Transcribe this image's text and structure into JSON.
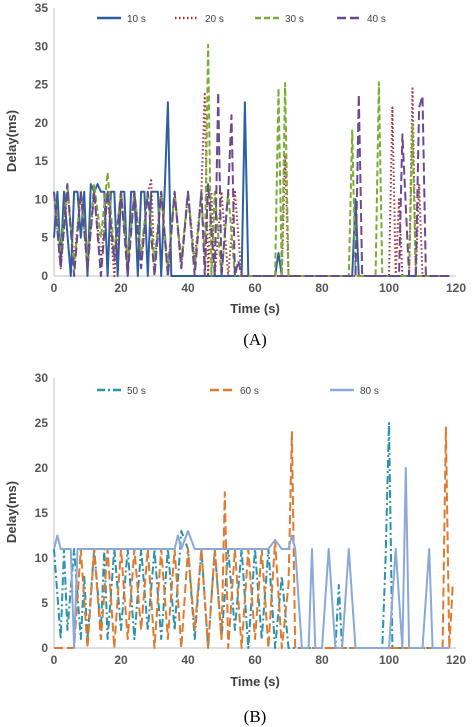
{
  "chart_data": [
    {
      "type": "line",
      "panel_label": "(A)",
      "xlabel": "Time (s)",
      "ylabel": "Delay(ms)",
      "xlim": [
        0,
        120
      ],
      "ylim": [
        0,
        35
      ],
      "xticks": [
        "0",
        "20",
        "40",
        "60",
        "80",
        "100",
        "120"
      ],
      "yticks": [
        "0",
        "5",
        "10",
        "15",
        "20",
        "25",
        "30",
        "35"
      ],
      "grid": false,
      "legend_position": "top",
      "series": [
        {
          "name": "10 s",
          "color": "#2e5fa3",
          "dash": "solid",
          "x": [
            0,
            1,
            2,
            3,
            5,
            6,
            7,
            8,
            9,
            10,
            11,
            12,
            13,
            14,
            15,
            16,
            17,
            18,
            19,
            20,
            21,
            22,
            23,
            24,
            25,
            26,
            27,
            28,
            29,
            30,
            31,
            32,
            33,
            34,
            35,
            36,
            37,
            38,
            39,
            40,
            42,
            44,
            45,
            46,
            47,
            48,
            50,
            52,
            54,
            55,
            56,
            57,
            58,
            60,
            62,
            64,
            66,
            67,
            68,
            70,
            75,
            80,
            85,
            88,
            89,
            90,
            91,
            92,
            95,
            100,
            105,
            110,
            115,
            118
          ],
          "values": [
            5,
            11,
            2,
            11,
            0,
            11,
            11,
            5,
            11,
            0,
            12,
            11,
            12,
            11,
            11,
            0,
            11,
            11,
            0,
            11,
            11,
            0,
            11,
            11,
            0,
            11,
            11,
            0,
            11,
            11,
            11,
            0,
            11,
            22.7,
            0,
            0,
            0,
            0,
            0,
            0,
            0,
            0,
            0,
            0,
            0,
            0,
            0,
            0,
            0,
            0,
            0,
            22.7,
            0,
            0,
            0,
            0,
            0,
            3,
            0,
            0,
            0,
            0,
            0,
            0,
            0,
            10,
            0,
            0,
            0,
            0,
            0,
            0,
            0,
            0
          ]
        },
        {
          "name": "20 s",
          "color": "#a83232",
          "dash": "dot",
          "x": [
            0,
            2,
            4,
            6,
            8,
            10,
            12,
            14,
            16,
            18,
            20,
            22,
            24,
            26,
            28,
            29,
            30,
            32,
            34,
            36,
            38,
            40,
            42,
            44,
            45,
            46,
            47,
            48,
            50,
            52,
            54,
            56,
            58,
            60,
            62,
            64,
            66,
            68,
            69,
            70,
            72,
            80,
            90,
            95,
            100,
            101,
            102,
            103,
            104,
            106,
            107,
            108,
            109,
            110,
            111,
            112,
            118
          ],
          "values": [
            11,
            1,
            11,
            2,
            11,
            1,
            11,
            2,
            11,
            0,
            11,
            1,
            11,
            2,
            11,
            12.5,
            1,
            11,
            0,
            11,
            1,
            11,
            2,
            11,
            24,
            0,
            11,
            0,
            11,
            0,
            11,
            0,
            0,
            0,
            0,
            0,
            0,
            0,
            15.8,
            0,
            0,
            0,
            0,
            0,
            0,
            22,
            0,
            10,
            0,
            0,
            24.5,
            0,
            12,
            0,
            0,
            0,
            0
          ]
        },
        {
          "name": "30 s",
          "color": "#7aab34",
          "dash": "dash",
          "x": [
            0,
            2,
            4,
            6,
            8,
            10,
            12,
            14,
            16,
            18,
            20,
            22,
            24,
            26,
            28,
            30,
            32,
            34,
            36,
            38,
            40,
            42,
            44,
            45,
            46,
            47,
            48,
            50,
            52,
            54,
            56,
            58,
            60,
            62,
            64,
            65,
            66,
            67,
            68,
            69,
            70,
            72,
            80,
            85,
            88,
            89,
            90,
            91,
            92,
            94,
            96,
            97,
            98,
            99,
            100,
            104,
            106,
            107,
            108,
            109,
            112,
            118
          ],
          "values": [
            11,
            3,
            12,
            1,
            11,
            2,
            12,
            5,
            13.5,
            3,
            11,
            2,
            11,
            3,
            11,
            2,
            11,
            1,
            11,
            2,
            11,
            1,
            11,
            2,
            30.2,
            0,
            11,
            0,
            11,
            0,
            0,
            0,
            0,
            0,
            0,
            0,
            0,
            24.5,
            0,
            25.2,
            0,
            0,
            0,
            0,
            0,
            19,
            0,
            0,
            0,
            0,
            0,
            25.3,
            0,
            0,
            0,
            0,
            0,
            20,
            0,
            0,
            0,
            0
          ]
        },
        {
          "name": "40 s",
          "color": "#6a4a8f",
          "dash": "longdash",
          "x": [
            0,
            2,
            4,
            6,
            8,
            10,
            12,
            14,
            16,
            18,
            20,
            22,
            24,
            26,
            28,
            30,
            32,
            34,
            36,
            38,
            40,
            42,
            44,
            45,
            46,
            48,
            49,
            50,
            52,
            53,
            54,
            55,
            56,
            58,
            60,
            70,
            80,
            88,
            90,
            91,
            92,
            94,
            96,
            100,
            101,
            102,
            103,
            104,
            106,
            108,
            109,
            110,
            111,
            112,
            118
          ],
          "values": [
            11,
            1,
            12,
            0,
            11,
            1,
            11,
            0,
            11,
            2,
            11,
            0,
            11,
            1,
            11,
            0,
            11,
            0,
            11,
            1,
            11,
            0,
            11,
            0,
            12,
            0,
            24,
            0,
            11,
            21,
            0,
            2,
            0,
            0,
            0,
            0,
            0,
            0,
            0,
            23.7,
            0,
            0,
            0,
            0,
            0,
            0,
            0,
            18.5,
            0,
            0,
            22,
            23.5,
            0,
            0,
            0
          ]
        }
      ]
    },
    {
      "type": "line",
      "panel_label": "(B)",
      "xlabel": "Time (s)",
      "ylabel": "Delay(ms)",
      "xlim": [
        0,
        120
      ],
      "ylim": [
        0,
        30
      ],
      "xticks": [
        "0",
        "20",
        "40",
        "60",
        "80",
        "100",
        "120"
      ],
      "yticks": [
        "0",
        "5",
        "10",
        "15",
        "20",
        "25",
        "30"
      ],
      "grid": false,
      "legend_position": "top",
      "series": [
        {
          "name": "50 s",
          "color": "#2a93ad",
          "dash": "dashdot",
          "x": [
            0,
            2,
            3,
            4,
            6,
            8,
            9,
            10,
            12,
            14,
            15,
            16,
            18,
            20,
            22,
            24,
            26,
            28,
            30,
            32,
            34,
            36,
            38,
            40,
            42,
            44,
            46,
            48,
            50,
            52,
            54,
            56,
            58,
            60,
            62,
            64,
            66,
            68,
            70,
            72,
            75,
            80,
            84,
            85,
            86,
            88,
            90,
            95,
            98,
            99,
            100,
            101,
            102,
            106,
            110,
            114,
            118
          ],
          "values": [
            11,
            1,
            11,
            2,
            11,
            1,
            8,
            1,
            11,
            2,
            11,
            1,
            11,
            2,
            11,
            1,
            11,
            2,
            11,
            1,
            11,
            2,
            13,
            11,
            1,
            11,
            0,
            11,
            1,
            11,
            2,
            11,
            0,
            11,
            1,
            11,
            0,
            8,
            0,
            0,
            0,
            0,
            0,
            7,
            0,
            0,
            0,
            0,
            0,
            10,
            25,
            0,
            0,
            0,
            0,
            0,
            0
          ]
        },
        {
          "name": "60 s",
          "color": "#e07a2e",
          "dash": "longdash",
          "x": [
            0,
            6,
            8,
            10,
            12,
            14,
            16,
            18,
            20,
            22,
            24,
            26,
            28,
            30,
            32,
            34,
            36,
            38,
            40,
            42,
            44,
            46,
            48,
            50,
            51,
            52,
            54,
            56,
            58,
            60,
            62,
            64,
            66,
            68,
            70,
            71,
            72,
            74,
            80,
            90,
            100,
            110,
            116,
            117,
            118,
            119
          ],
          "values": [
            0,
            0,
            11,
            0,
            11,
            1,
            11,
            0,
            11,
            1,
            11,
            2,
            11,
            0,
            11,
            1,
            11,
            0,
            11,
            2,
            11,
            0,
            11,
            1,
            17.3,
            0,
            11,
            0,
            11,
            1,
            11,
            0,
            12,
            0,
            7,
            24,
            0,
            0,
            0,
            0,
            0,
            0,
            0,
            24.5,
            0,
            7
          ]
        },
        {
          "name": "80 s",
          "color": "#8aa9d6",
          "dash": "solid",
          "x": [
            0,
            1,
            2,
            3,
            4,
            5,
            6,
            7,
            8,
            9,
            10,
            12,
            14,
            16,
            18,
            20,
            22,
            24,
            26,
            28,
            30,
            32,
            34,
            36,
            37,
            38,
            40,
            42,
            44,
            46,
            48,
            50,
            52,
            54,
            56,
            58,
            60,
            62,
            64,
            66,
            68,
            70,
            71,
            72,
            74,
            76,
            77,
            78,
            80,
            82,
            84,
            86,
            88,
            90,
            92,
            94,
            96,
            98,
            100,
            102,
            104,
            105,
            106,
            108,
            110,
            112,
            113,
            114,
            116,
            118
          ],
          "values": [
            11,
            12.5,
            11,
            11,
            11,
            11,
            0,
            11,
            11,
            11,
            11,
            11,
            11,
            11,
            11,
            11,
            11,
            11,
            11,
            11,
            11,
            11,
            11,
            11,
            12.5,
            11,
            13,
            11,
            11,
            11,
            11,
            11,
            11,
            11,
            11,
            11,
            11,
            11,
            11,
            12,
            11,
            11,
            12.5,
            11,
            0,
            0,
            11,
            0,
            0,
            11,
            0,
            0,
            11,
            0,
            0,
            0,
            0,
            0,
            0,
            11,
            0,
            20,
            0,
            0,
            0,
            11,
            0,
            0,
            0,
            0
          ]
        }
      ]
    }
  ]
}
